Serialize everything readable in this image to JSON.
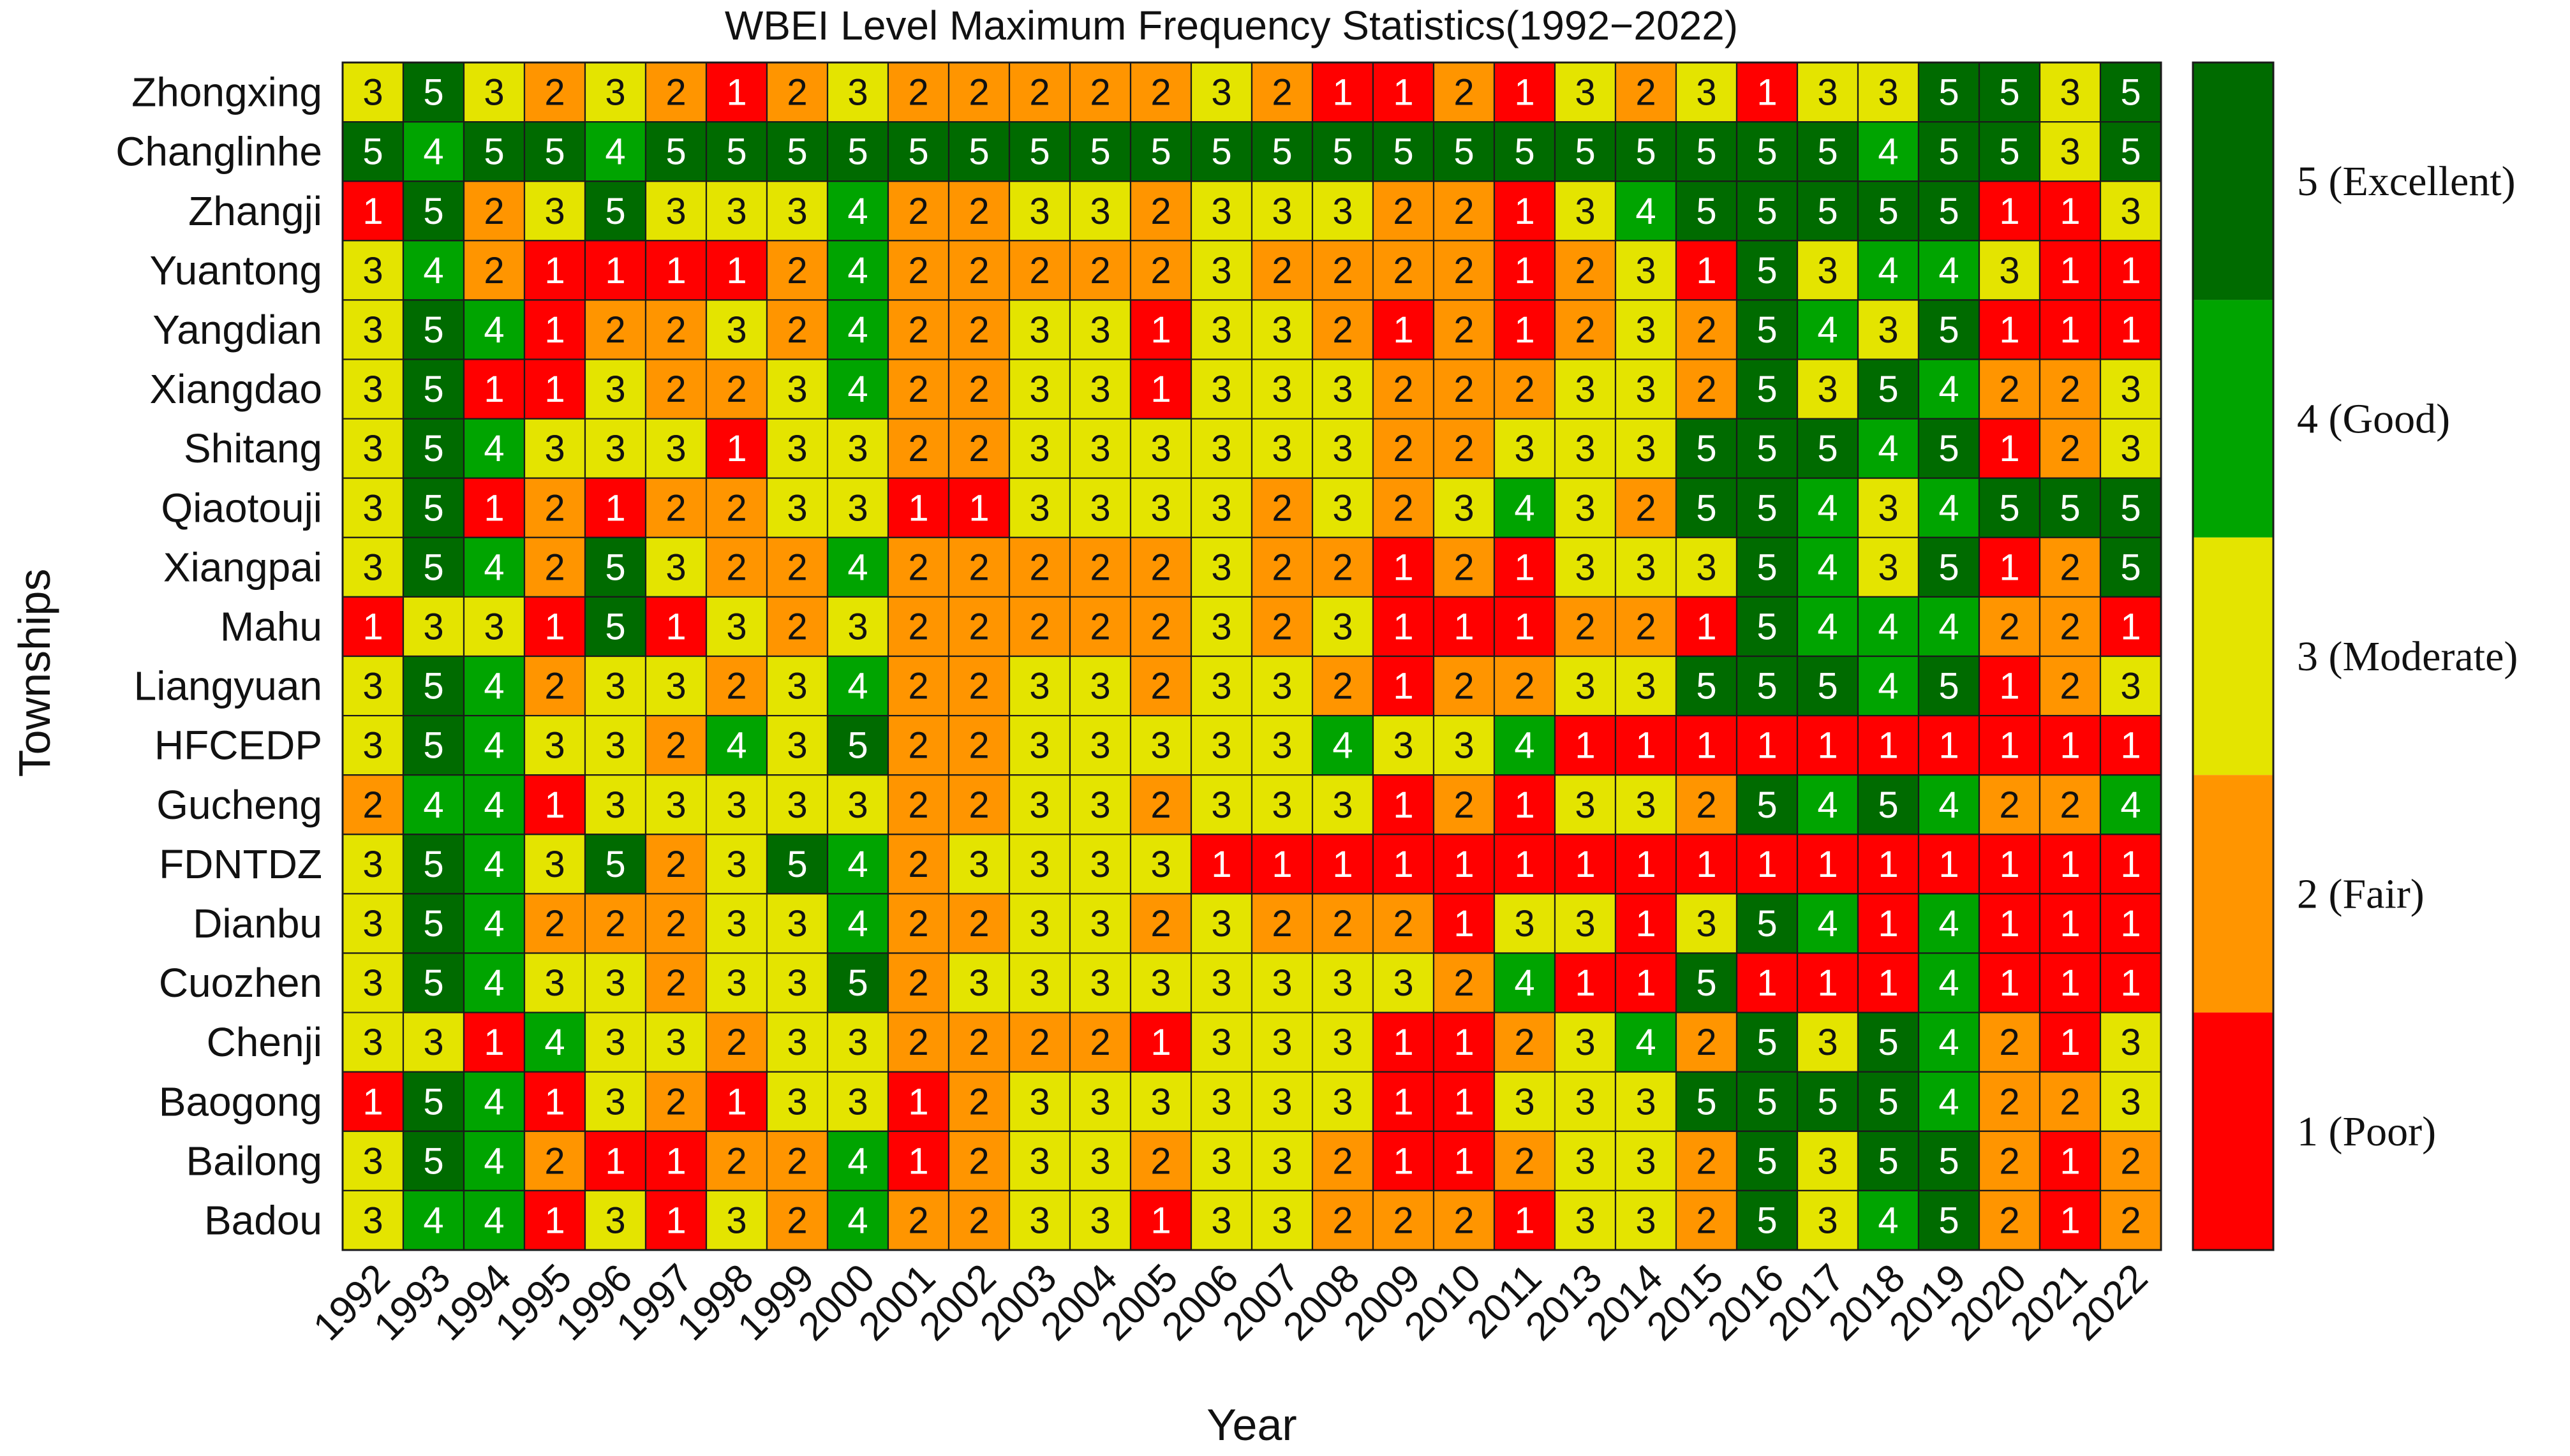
{
  "chart_data": {
    "type": "heatmap",
    "title": "WBEI Level Maximum Frequency Statistics(1992−2022)",
    "xlabel": "Year",
    "ylabel": "Townships",
    "x": [
      "1992",
      "1993",
      "1994",
      "1995",
      "1996",
      "1997",
      "1998",
      "1999",
      "2000",
      "2001",
      "2002",
      "2003",
      "2004",
      "2005",
      "2006",
      "2007",
      "2008",
      "2009",
      "2010",
      "2011",
      "2013",
      "2014",
      "2015",
      "2016",
      "2017",
      "2018",
      "2019",
      "2020",
      "2021",
      "2022"
    ],
    "y": [
      "Zhongxing",
      "Changlinhe",
      "Zhangji",
      "Yuantong",
      "Yangdian",
      "Xiangdao",
      "Shitang",
      "Qiaotouji",
      "Xiangpai",
      "Mahu",
      "Liangyuan",
      "HFCEDP",
      "Gucheng",
      "FDNTDZ",
      "Dianbu",
      "Cuozhen",
      "Chenji",
      "Baogong",
      "Bailong",
      "Badou"
    ],
    "values": [
      [
        3,
        5,
        3,
        2,
        3,
        2,
        1,
        2,
        3,
        2,
        2,
        2,
        2,
        2,
        3,
        2,
        1,
        1,
        2,
        1,
        3,
        2,
        3,
        1,
        3,
        3,
        5,
        5,
        3,
        5
      ],
      [
        5,
        4,
        5,
        5,
        4,
        5,
        5,
        5,
        5,
        5,
        5,
        5,
        5,
        5,
        5,
        5,
        5,
        5,
        5,
        5,
        5,
        5,
        5,
        5,
        5,
        4,
        5,
        5,
        3,
        5
      ],
      [
        1,
        5,
        2,
        3,
        5,
        3,
        3,
        3,
        4,
        2,
        2,
        3,
        3,
        2,
        3,
        3,
        3,
        2,
        2,
        1,
        3,
        4,
        5,
        5,
        5,
        5,
        5,
        1,
        1,
        3
      ],
      [
        3,
        4,
        2,
        1,
        1,
        1,
        1,
        2,
        4,
        2,
        2,
        2,
        2,
        2,
        3,
        2,
        2,
        2,
        2,
        1,
        2,
        3,
        1,
        5,
        3,
        4,
        4,
        3,
        1,
        1
      ],
      [
        3,
        5,
        4,
        1,
        2,
        2,
        3,
        2,
        4,
        2,
        2,
        3,
        3,
        1,
        3,
        3,
        2,
        1,
        2,
        1,
        2,
        3,
        2,
        5,
        4,
        3,
        5,
        1,
        1,
        1
      ],
      [
        3,
        5,
        1,
        1,
        3,
        2,
        2,
        3,
        4,
        2,
        2,
        3,
        3,
        1,
        3,
        3,
        3,
        2,
        2,
        2,
        3,
        3,
        2,
        5,
        3,
        5,
        4,
        2,
        2,
        3
      ],
      [
        3,
        5,
        4,
        3,
        3,
        3,
        1,
        3,
        3,
        2,
        2,
        3,
        3,
        3,
        3,
        3,
        3,
        2,
        2,
        3,
        3,
        3,
        5,
        5,
        5,
        4,
        5,
        1,
        2,
        3
      ],
      [
        3,
        5,
        1,
        2,
        1,
        2,
        2,
        3,
        3,
        1,
        1,
        3,
        3,
        3,
        3,
        2,
        3,
        2,
        3,
        4,
        3,
        2,
        5,
        5,
        4,
        3,
        4,
        5,
        5,
        5
      ],
      [
        3,
        5,
        4,
        2,
        5,
        3,
        2,
        2,
        4,
        2,
        2,
        2,
        2,
        2,
        3,
        2,
        2,
        1,
        2,
        1,
        3,
        3,
        3,
        5,
        4,
        3,
        5,
        1,
        2,
        5
      ],
      [
        1,
        3,
        3,
        1,
        5,
        1,
        3,
        2,
        3,
        2,
        2,
        2,
        2,
        2,
        3,
        2,
        3,
        1,
        1,
        1,
        2,
        2,
        1,
        5,
        4,
        4,
        4,
        2,
        2,
        1
      ],
      [
        3,
        5,
        4,
        2,
        3,
        3,
        2,
        3,
        4,
        2,
        2,
        3,
        3,
        2,
        3,
        3,
        2,
        1,
        2,
        2,
        3,
        3,
        5,
        5,
        5,
        4,
        5,
        1,
        2,
        3
      ],
      [
        3,
        5,
        4,
        3,
        3,
        2,
        4,
        3,
        5,
        2,
        2,
        3,
        3,
        3,
        3,
        3,
        4,
        3,
        3,
        4,
        1,
        1,
        1,
        1,
        1,
        1,
        1,
        1,
        1,
        1
      ],
      [
        2,
        4,
        4,
        1,
        3,
        3,
        3,
        3,
        3,
        2,
        2,
        3,
        3,
        2,
        3,
        3,
        3,
        1,
        2,
        1,
        3,
        3,
        2,
        5,
        4,
        5,
        4,
        2,
        2,
        4
      ],
      [
        3,
        5,
        4,
        3,
        5,
        2,
        3,
        5,
        4,
        2,
        3,
        3,
        3,
        3,
        1,
        1,
        1,
        1,
        1,
        1,
        1,
        1,
        1,
        1,
        1,
        1,
        1,
        1,
        1,
        1
      ],
      [
        3,
        5,
        4,
        2,
        2,
        2,
        3,
        3,
        4,
        2,
        2,
        3,
        3,
        2,
        3,
        2,
        2,
        2,
        1,
        3,
        3,
        1,
        3,
        5,
        4,
        1,
        4,
        1,
        1,
        1
      ],
      [
        3,
        5,
        4,
        3,
        3,
        2,
        3,
        3,
        5,
        2,
        3,
        3,
        3,
        3,
        3,
        3,
        3,
        3,
        2,
        4,
        1,
        1,
        5,
        1,
        1,
        1,
        4,
        1,
        1,
        1
      ],
      [
        3,
        3,
        1,
        4,
        3,
        3,
        2,
        3,
        3,
        2,
        2,
        2,
        2,
        1,
        3,
        3,
        3,
        1,
        1,
        2,
        3,
        4,
        2,
        5,
        3,
        5,
        4,
        2,
        1,
        3
      ],
      [
        1,
        5,
        4,
        1,
        3,
        2,
        1,
        3,
        3,
        1,
        2,
        3,
        3,
        3,
        3,
        3,
        3,
        1,
        1,
        3,
        3,
        3,
        5,
        5,
        5,
        5,
        4,
        2,
        2,
        3
      ],
      [
        3,
        5,
        4,
        2,
        1,
        1,
        2,
        2,
        4,
        1,
        2,
        3,
        3,
        2,
        3,
        3,
        2,
        1,
        1,
        2,
        3,
        3,
        2,
        5,
        3,
        5,
        5,
        2,
        1,
        2
      ],
      [
        3,
        4,
        4,
        1,
        3,
        1,
        3,
        2,
        4,
        2,
        2,
        3,
        3,
        1,
        3,
        3,
        2,
        2,
        2,
        1,
        3,
        3,
        2,
        5,
        3,
        4,
        5,
        2,
        1,
        2
      ]
    ],
    "colorbar": {
      "levels": [
        {
          "value": 5,
          "label": "5 (Excellent)",
          "color": "#006b00"
        },
        {
          "value": 4,
          "label": "4 (Good)",
          "color": "#00a400"
        },
        {
          "value": 3,
          "label": "3 (Moderate)",
          "color": "#e4e400"
        },
        {
          "value": 2,
          "label": "2 (Fair)",
          "color": "#ff9500"
        },
        {
          "value": 1,
          "label": "1 (Poor)",
          "color": "#ff0000"
        }
      ]
    },
    "cell_text_colors": {
      "1": "#ffffff",
      "2": "#111111",
      "3": "#111111",
      "4": "#ffffff",
      "5": "#ffffff"
    }
  }
}
